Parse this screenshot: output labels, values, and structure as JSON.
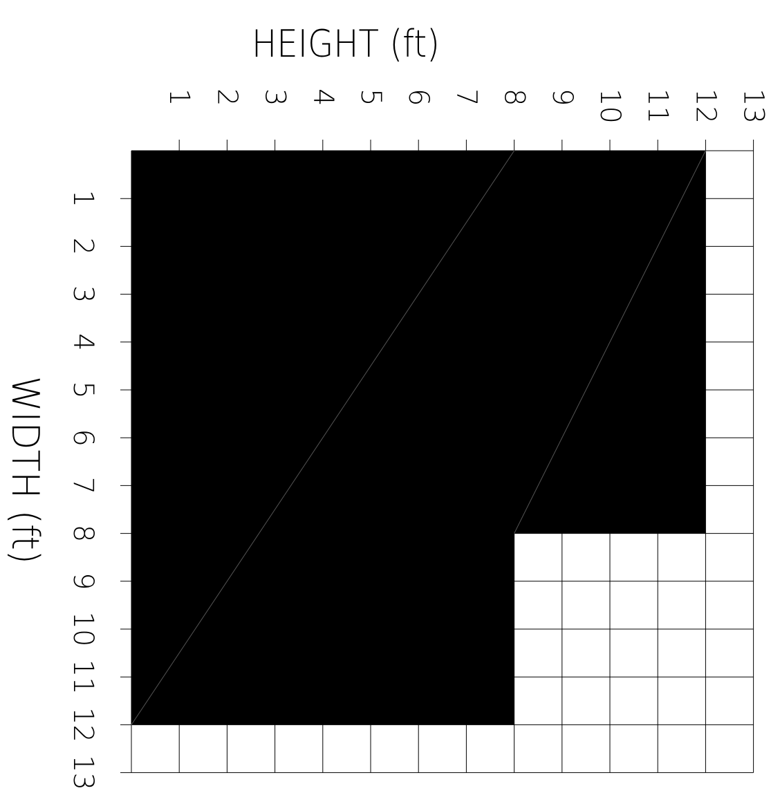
{
  "x_axis_title": "HEIGHT (ft)",
  "y_axis_title": "WIDTH (ft)",
  "grid": {
    "cells_x": 13,
    "cells_y": 13,
    "x_tick_labels": [
      "1",
      "2",
      "3",
      "4",
      "5",
      "6",
      "7",
      "8",
      "9",
      "10",
      "11",
      "12",
      "13"
    ],
    "y_tick_labels": [
      "1",
      "2",
      "3",
      "4",
      "5",
      "6",
      "7",
      "8",
      "9",
      "10",
      "11",
      "12",
      "13"
    ]
  },
  "pieces": [
    {
      "height": 8,
      "width": 12,
      "fill": "#000000"
    },
    {
      "height": 4,
      "width": 8,
      "fill": "#000000"
    }
  ]
}
